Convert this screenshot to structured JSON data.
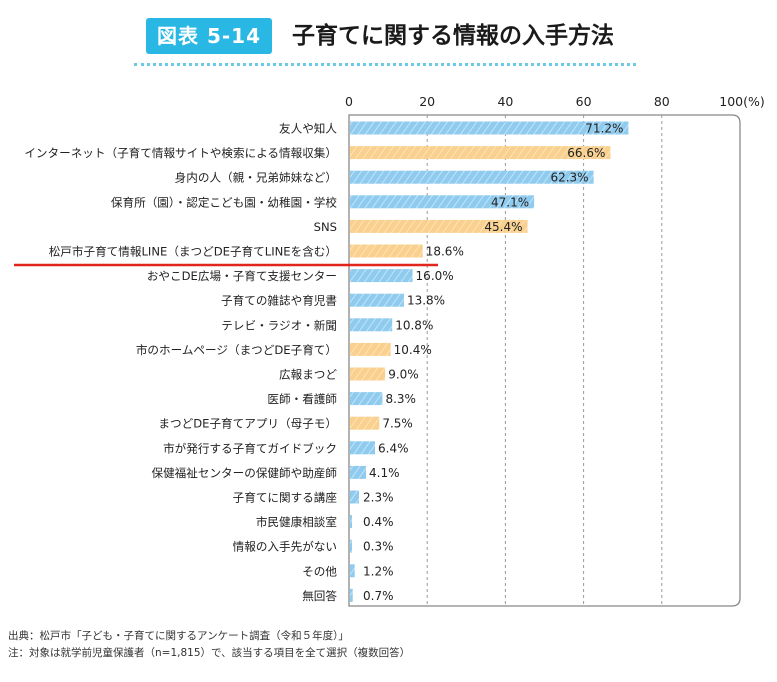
{
  "header": {
    "badge": "図表 5-14",
    "title": "子育てに関する情報の入手方法"
  },
  "colors": {
    "badge": "#29b7e4",
    "bar_blue": "#8fcbef",
    "bar_orange": "#f9d08e",
    "highlight_line": "#e1241c",
    "divider": "#6cc9e8"
  },
  "chart_data": {
    "type": "bar",
    "orientation": "horizontal",
    "unit_label": "100(%)",
    "xlim": [
      0,
      100
    ],
    "xticks": [
      "0",
      "20",
      "40",
      "60",
      "80"
    ],
    "grid": "dashed vertical",
    "categories": [
      "友人や知人",
      "インターネット（子育て情報サイトや検索による情報収集）",
      "身内の人（親・兄弟姉妹など）",
      "保育所（園）・認定こども園・幼稚園・学校",
      "SNS",
      "松戸市子育て情報LINE（まつどDE子育てLINEを含む）",
      "おやこDE広場・子育て支援センター",
      "子育ての雑誌や育児書",
      "テレビ・ラジオ・新聞",
      "市のホームページ（まつどDE子育て）",
      "広報まつど",
      "医師・看護師",
      "まつどDE子育てアプリ（母子モ）",
      "市が発行する子育てガイドブック",
      "保健福祉センターの保健師や助産師",
      "子育てに関する講座",
      "市民健康相談室",
      "情報の入手先がない",
      "その他",
      "無回答"
    ],
    "values": [
      71.2,
      66.6,
      62.3,
      47.1,
      45.4,
      18.6,
      16.0,
      13.8,
      10.8,
      10.4,
      9.0,
      8.3,
      7.5,
      6.4,
      4.1,
      2.3,
      0.4,
      0.3,
      1.2,
      0.7
    ],
    "value_labels": [
      "71.2%",
      "66.6%",
      "62.3%",
      "47.1%",
      "45.4%",
      "18.6%",
      "16.0%",
      "13.8%",
      "10.8%",
      "10.4%",
      "9.0%",
      "8.3%",
      "7.5%",
      "6.4%",
      "4.1%",
      "2.3%",
      "0.4%",
      "0.3%",
      "1.2%",
      "0.7%"
    ],
    "bar_colors": [
      "blue",
      "orange",
      "blue",
      "blue",
      "orange",
      "orange",
      "blue",
      "blue",
      "blue",
      "orange",
      "orange",
      "blue",
      "orange",
      "blue",
      "blue",
      "blue",
      "blue",
      "blue",
      "blue",
      "blue"
    ],
    "highlighted_category": "松戸市子育て情報LINE（まつどDE子育てLINEを含む）"
  },
  "notes": {
    "source": "出典：松戸市「子ども・子育てに関するアンケート調査（令和５年度）」",
    "note": "注：対象は就学前児童保護者（n=1,815）で、該当する項目を全て選択（複数回答）"
  }
}
